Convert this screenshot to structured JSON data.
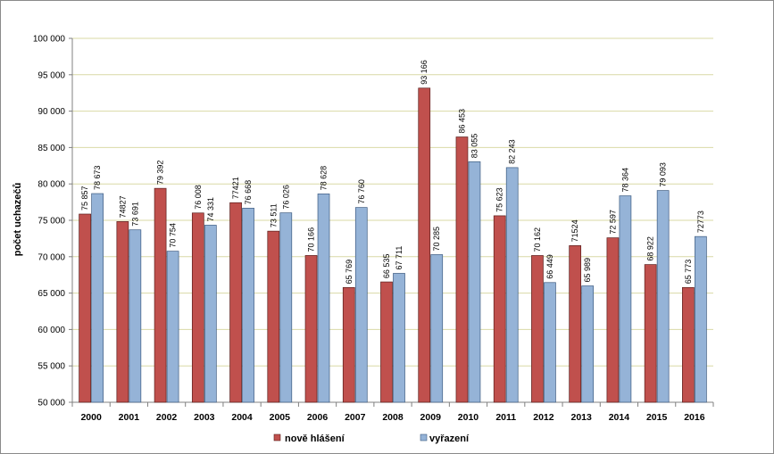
{
  "chart_data": {
    "type": "bar",
    "title": "",
    "xlabel": "",
    "ylabel": "počet  uchazečů",
    "ylim": [
      50000,
      100000
    ],
    "ytick_step": 5000,
    "ytick_labels": [
      "50 000",
      "55 000",
      "60 000",
      "65 000",
      "70 000",
      "75 000",
      "80 000",
      "85 000",
      "90 000",
      "95 000",
      "100 000"
    ],
    "grid": true,
    "legend_position": "bottom",
    "categories": [
      "2000",
      "2001",
      "2002",
      "2003",
      "2004",
      "2005",
      "2006",
      "2007",
      "2008",
      "2009",
      "2010",
      "2011",
      "2012",
      "2013",
      "2014",
      "2015",
      "2016"
    ],
    "series": [
      {
        "name": "nově hlášení",
        "color": "#c0504d",
        "values": [
          75857,
          74827,
          79392,
          76008,
          77421,
          73511,
          70166,
          65769,
          66535,
          93166,
          86453,
          75623,
          70162,
          71524,
          72597,
          68922,
          65773
        ],
        "labels": [
          "75 857",
          "74827",
          "79 392",
          "76 008",
          "77421",
          "73 511",
          "70 166",
          "65 769",
          "66 535",
          "93 166",
          "86 453",
          "75 623",
          "70 162",
          "71524",
          "72 597",
          "68 922",
          "65 773"
        ]
      },
      {
        "name": "vyřazení",
        "color": "#95b3d7",
        "values": [
          78673,
          73691,
          70754,
          74331,
          76668,
          76026,
          78628,
          76760,
          67711,
          70285,
          83055,
          82243,
          66449,
          65989,
          78364,
          79093,
          72773
        ],
        "labels": [
          "78 673",
          "73 691",
          "70 754",
          "74 331",
          "76 668",
          "76 026",
          "78 628",
          "76 760",
          "67 711",
          "70 285",
          "83 055",
          "82 243",
          "66 449",
          "65 989",
          "78 364",
          "79 093",
          "72773"
        ]
      }
    ]
  }
}
